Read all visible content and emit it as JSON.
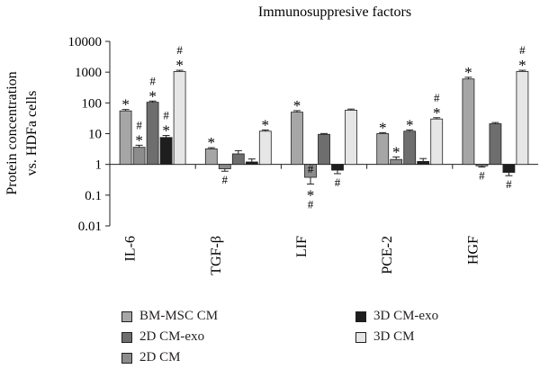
{
  "chart_data": {
    "type": "bar",
    "title": "Immunosuppresive factors",
    "ylabel_line1": "Protein concentration",
    "ylabel_line2": "vs. HDFa cells",
    "xlabel": "",
    "yscale": "log",
    "ylim": [
      0.01,
      10000
    ],
    "yticks": [
      "10000",
      "1000",
      "100",
      "10",
      "1",
      "0.1",
      "0.01"
    ],
    "categories": [
      "IL-6",
      "TGF-β",
      "LIF",
      "PCE-2",
      "HGF"
    ],
    "series": [
      {
        "name": "BM-MSC CM",
        "color": "#a6a6a6",
        "values": [
          55,
          3.2,
          50,
          10,
          600
        ],
        "errors": [
          6,
          0.3,
          6,
          0.8,
          80
        ]
      },
      {
        "name": "2D CM",
        "color": "#8c8c8c",
        "values": [
          3.6,
          0.72,
          0.38,
          1.45,
          0.9
        ],
        "errors": [
          0.6,
          0.12,
          0.15,
          0.3,
          0.08
        ]
      },
      {
        "name": "2D CM-exo",
        "color": "#6e6e6e",
        "values": [
          105,
          2.2,
          9.5,
          12,
          21
        ],
        "errors": [
          10,
          0.6,
          0.6,
          1.2,
          2
        ]
      },
      {
        "name": "3D CM-exo",
        "color": "#1e1e1e",
        "values": [
          7.5,
          1.2,
          0.65,
          1.25,
          0.55
        ],
        "errors": [
          1.2,
          0.3,
          0.15,
          0.3,
          0.12
        ]
      },
      {
        "name": "3D CM",
        "color": "#e6e6e6",
        "values": [
          1050,
          12,
          58,
          30,
          1050
        ],
        "errors": [
          100,
          1.2,
          5,
          3,
          100
        ]
      }
    ],
    "annotations_above": [
      [
        "*",
        "#\n*",
        "#\n*",
        "#\n*",
        "#\n*"
      ],
      [
        "*",
        "",
        "",
        "",
        "*"
      ],
      [
        "*",
        "#",
        "",
        "",
        ""
      ],
      [
        "*",
        "*",
        "*",
        "",
        "#\n*"
      ],
      [
        "*",
        "",
        "",
        "",
        "#\n*"
      ]
    ],
    "annotations_below": [
      [
        "",
        "",
        "",
        "",
        ""
      ],
      [
        "",
        "#",
        "",
        "",
        ""
      ],
      [
        "",
        "*\n#",
        "",
        "#",
        ""
      ],
      [
        "",
        "",
        "",
        "",
        ""
      ],
      [
        "",
        "#",
        "",
        "#",
        ""
      ]
    ],
    "legend": [
      {
        "label": "BM-MSC CM",
        "color": "#a6a6a6"
      },
      {
        "label": "3D CM-exo",
        "color": "#1e1e1e"
      },
      {
        "label": "2D CM-exo",
        "color": "#6e6e6e"
      },
      {
        "label": "3D CM",
        "color": "#e6e6e6"
      },
      {
        "label": "2D CM",
        "color": "#8c8c8c"
      }
    ],
    "legend_placement": "bottom",
    "grid": false
  }
}
